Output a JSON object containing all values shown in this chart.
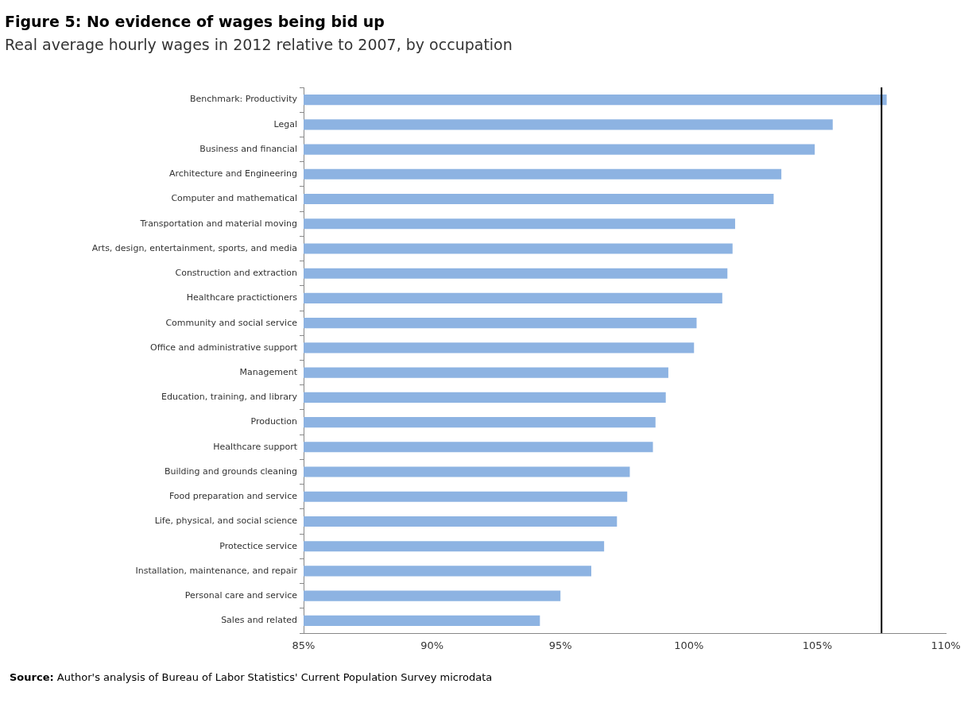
{
  "chart_data": {
    "type": "bar",
    "orientation": "horizontal",
    "title": "Figure 5: No evidence of wages being bid up",
    "subtitle": "Real average hourly wages in 2012 relative to 2007, by occupation",
    "categories": [
      "Benchmark: Productivity",
      "Legal",
      "Business and financial",
      "Architecture and Engineering",
      "Computer and mathematical",
      "Transportation and material moving",
      "Arts, design, entertainment, sports, and media",
      "Construction and extraction",
      "Healthcare practictioners",
      "Community and social service",
      "Office and administrative support",
      "Management",
      "Education, training, and library",
      "Production",
      "Healthcare support",
      "Building and grounds cleaning",
      "Food preparation and service",
      "Life, physical, and social science",
      "Protectice service",
      "Installation, maintenance, and repair",
      "Personal care and service",
      "Sales and related"
    ],
    "values": [
      107.7,
      105.6,
      104.9,
      103.6,
      103.3,
      101.8,
      101.7,
      101.5,
      101.3,
      100.3,
      100.2,
      99.2,
      99.1,
      98.7,
      98.6,
      97.7,
      97.6,
      97.2,
      96.7,
      96.2,
      95.0,
      94.2
    ],
    "color": "#8db3e2",
    "xlim": [
      85,
      110
    ],
    "xticks": [
      {
        "value": 85,
        "label": "85%"
      },
      {
        "value": 90,
        "label": "90%"
      },
      {
        "value": 95,
        "label": "95%"
      },
      {
        "value": 100,
        "label": "100%"
      },
      {
        "value": 105,
        "label": "105%"
      },
      {
        "value": 110,
        "label": "110%"
      }
    ],
    "ref_lines": [
      {
        "axis": "x",
        "value": 107.5,
        "color": "#000000"
      }
    ],
    "grid": false,
    "legend": false,
    "annotations": [
      "Source: Author's analysis of Bureau of Labor Statistics' Current Population Survey microdata"
    ]
  }
}
